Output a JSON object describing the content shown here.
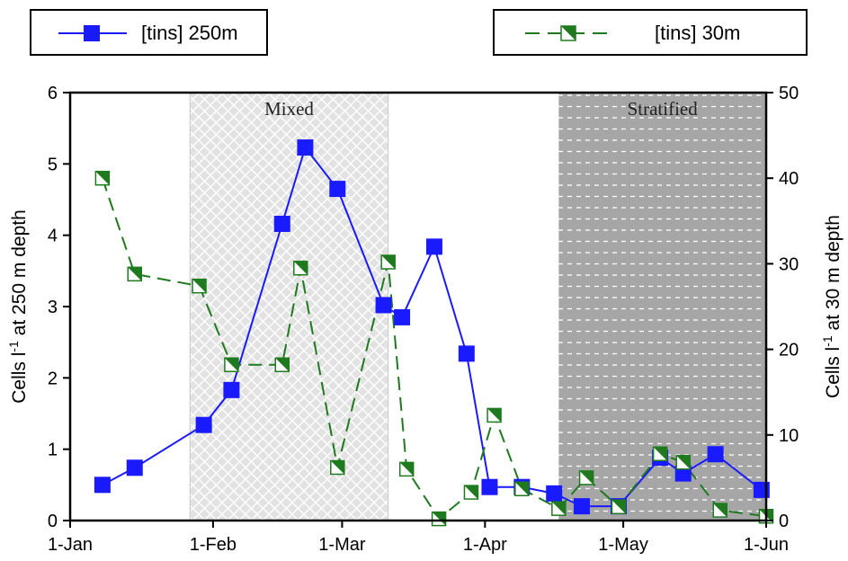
{
  "legend": {
    "series_a": "[tins] 250m",
    "series_b": "[tins] 30m"
  },
  "colors": {
    "series_a": "#1a1aff",
    "series_b": "#1f7a1f",
    "mixed_region": "#e2e2e2",
    "stratified_region": "#a6a6a6"
  },
  "chart_data": {
    "type": "line",
    "x_axis": {
      "type": "date",
      "range": [
        "01-01",
        "06-01"
      ],
      "tick_labels": [
        "1-Jan",
        "1-Feb",
        "1-Mar",
        "1-Apr",
        "1-May",
        "1-Jun"
      ],
      "tick_dates": [
        "01-01",
        "02-01",
        "03-01",
        "04-01",
        "05-01",
        "06-01"
      ]
    },
    "y_left": {
      "label": "Cells l-1 at 250 m depth",
      "label_main": "Cells l",
      "label_sup": "-1",
      "label_rest": " at 250 m depth",
      "range": [
        0,
        6
      ],
      "ticks": [
        "0",
        "1",
        "2",
        "3",
        "4",
        "5",
        "6"
      ]
    },
    "y_right": {
      "label": "Cells l-1 at 30 m depth",
      "label_main": "Cells l",
      "label_sup": "-1",
      "label_rest": " at 30 m depth",
      "range": [
        0,
        50
      ],
      "ticks": [
        "0",
        "10",
        "20",
        "30",
        "40",
        "50"
      ]
    },
    "regions": [
      {
        "label": "Mixed",
        "start": "01-27",
        "end": "03-11",
        "style": "crosshatch"
      },
      {
        "label": "Stratified",
        "start": "04-17",
        "end": "06-01",
        "style": "dotted-lines"
      }
    ],
    "series": [
      {
        "name": "[tins] 250m",
        "axis": "left",
        "marker": "filled-square",
        "line": "solid",
        "points": [
          {
            "x": "01-08",
            "y": 0.5
          },
          {
            "x": "01-15",
            "y": 0.74
          },
          {
            "x": "01-30",
            "y": 1.34
          },
          {
            "x": "02-05",
            "y": 1.83
          },
          {
            "x": "02-16",
            "y": 4.16
          },
          {
            "x": "02-21",
            "y": 5.23
          },
          {
            "x": "02-28",
            "y": 4.65
          },
          {
            "x": "03-10",
            "y": 3.02
          },
          {
            "x": "03-14",
            "y": 2.85
          },
          {
            "x": "03-21",
            "y": 3.84
          },
          {
            "x": "03-28",
            "y": 2.34
          },
          {
            "x": "04-02",
            "y": 0.47
          },
          {
            "x": "04-09",
            "y": 0.47
          },
          {
            "x": "04-16",
            "y": 0.38
          },
          {
            "x": "04-22",
            "y": 0.2
          },
          {
            "x": "04-30",
            "y": 0.2
          },
          {
            "x": "05-09",
            "y": 0.88
          },
          {
            "x": "05-14",
            "y": 0.66
          },
          {
            "x": "05-21",
            "y": 0.93
          },
          {
            "x": "05-31",
            "y": 0.43
          }
        ]
      },
      {
        "name": "[tins] 30m",
        "axis": "right",
        "marker": "half-filled-square",
        "line": "dashed",
        "points": [
          {
            "x": "01-08",
            "y": 40.0
          },
          {
            "x": "01-15",
            "y": 28.8
          },
          {
            "x": "01-29",
            "y": 27.4
          },
          {
            "x": "02-05",
            "y": 18.2
          },
          {
            "x": "02-16",
            "y": 18.2
          },
          {
            "x": "02-20",
            "y": 29.5
          },
          {
            "x": "02-28",
            "y": 6.2
          },
          {
            "x": "03-11",
            "y": 30.2
          },
          {
            "x": "03-15",
            "y": 6.0
          },
          {
            "x": "03-22",
            "y": 0.2
          },
          {
            "x": "03-29",
            "y": 3.3
          },
          {
            "x": "04-03",
            "y": 12.3
          },
          {
            "x": "04-09",
            "y": 3.7
          },
          {
            "x": "04-17",
            "y": 1.4
          },
          {
            "x": "04-23",
            "y": 5.0
          },
          {
            "x": "04-30",
            "y": 1.6
          },
          {
            "x": "05-09",
            "y": 7.8
          },
          {
            "x": "05-14",
            "y": 6.8
          },
          {
            "x": "05-22",
            "y": 1.2
          },
          {
            "x": "06-01",
            "y": 0.5
          }
        ]
      }
    ]
  }
}
